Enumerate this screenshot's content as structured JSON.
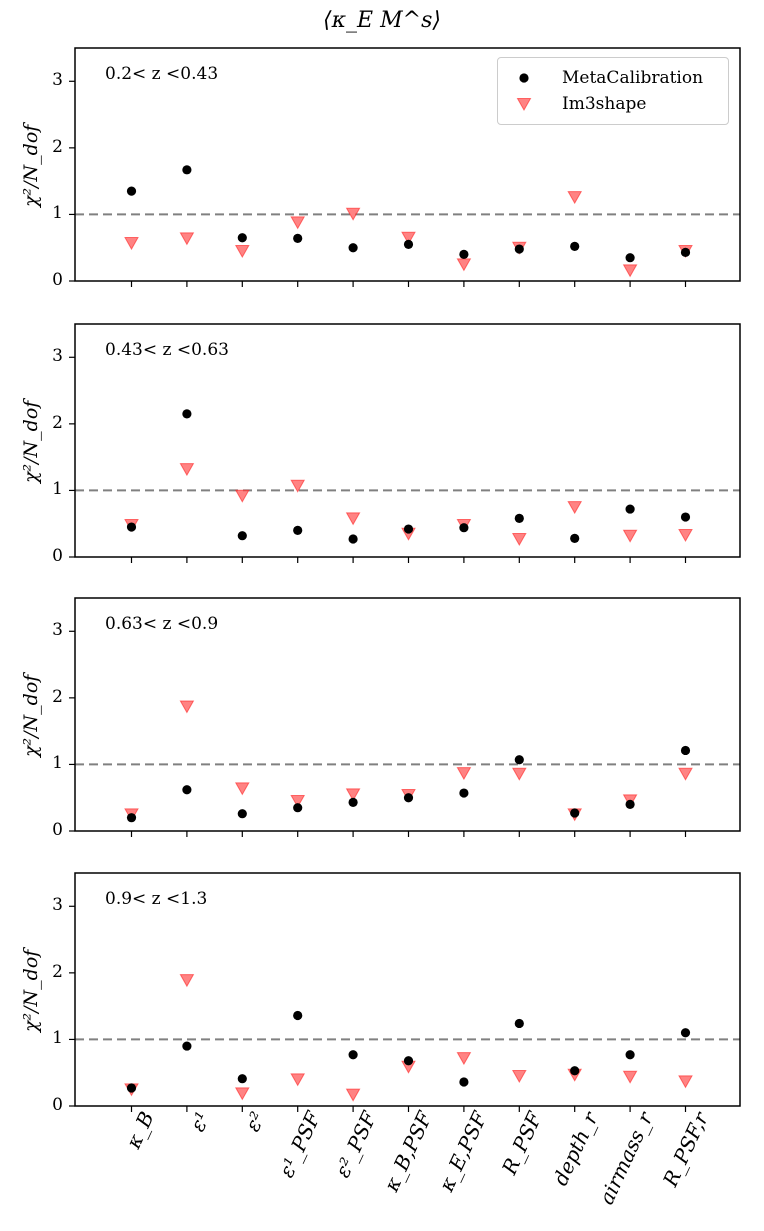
{
  "chart_data": {
    "type": "scatter",
    "title": "⟨κ_E M^s⟩",
    "ylabel": "χ²/N_dof",
    "ylim": [
      0,
      3.5
    ],
    "yticks": [
      "0",
      "1",
      "2",
      "3"
    ],
    "reference_line": 1,
    "legend_position": "top-right of first panel",
    "categories": [
      "κ_B",
      "ε¹",
      "ε²",
      "ε¹_PSF",
      "ε²_PSF",
      "κ_B,PSF",
      "κ_E,PSF",
      "R_PSF",
      "depth_r",
      "airmass_r",
      "R_PSF,r"
    ],
    "series_style": [
      {
        "name": "MetaCalibration",
        "marker": "circle",
        "color": "#000000"
      },
      {
        "name": "Im3shape",
        "marker": "triangle-down",
        "color": "#ff5a5a"
      }
    ],
    "panels": [
      {
        "label": "0.2< z <0.43",
        "series": [
          {
            "name": "MetaCalibration",
            "values": [
              1.35,
              1.67,
              0.65,
              0.64,
              0.5,
              0.55,
              0.4,
              0.48,
              0.52,
              0.35,
              0.43
            ]
          },
          {
            "name": "Im3shape",
            "values": [
              0.57,
              0.64,
              0.45,
              0.88,
              1.01,
              0.65,
              0.25,
              0.5,
              1.26,
              0.16,
              0.45
            ]
          }
        ]
      },
      {
        "label": "0.43< z <0.63",
        "series": [
          {
            "name": "MetaCalibration",
            "values": [
              0.45,
              2.15,
              0.32,
              0.4,
              0.27,
              0.42,
              0.44,
              0.58,
              0.28,
              0.72,
              0.6
            ]
          },
          {
            "name": "Im3shape",
            "values": [
              0.48,
              1.32,
              0.92,
              1.07,
              0.58,
              0.35,
              0.48,
              0.27,
              0.75,
              0.32,
              0.33
            ]
          }
        ]
      },
      {
        "label": "0.63< z <0.9",
        "series": [
          {
            "name": "MetaCalibration",
            "values": [
              0.2,
              0.62,
              0.26,
              0.35,
              0.43,
              0.5,
              0.57,
              1.07,
              0.27,
              0.4,
              1.21
            ]
          },
          {
            "name": "Im3shape",
            "values": [
              0.25,
              1.87,
              0.64,
              0.45,
              0.55,
              0.54,
              0.87,
              0.86,
              0.25,
              0.46,
              0.86
            ]
          }
        ]
      },
      {
        "label": "0.9< z <1.3",
        "series": [
          {
            "name": "MetaCalibration",
            "values": [
              0.27,
              0.9,
              0.41,
              1.36,
              0.77,
              0.68,
              0.36,
              1.24,
              0.53,
              0.77,
              1.1
            ]
          },
          {
            "name": "Im3shape",
            "values": [
              0.25,
              1.89,
              0.19,
              0.4,
              0.17,
              0.59,
              0.72,
              0.45,
              0.47,
              0.44,
              0.37
            ]
          }
        ]
      }
    ]
  }
}
